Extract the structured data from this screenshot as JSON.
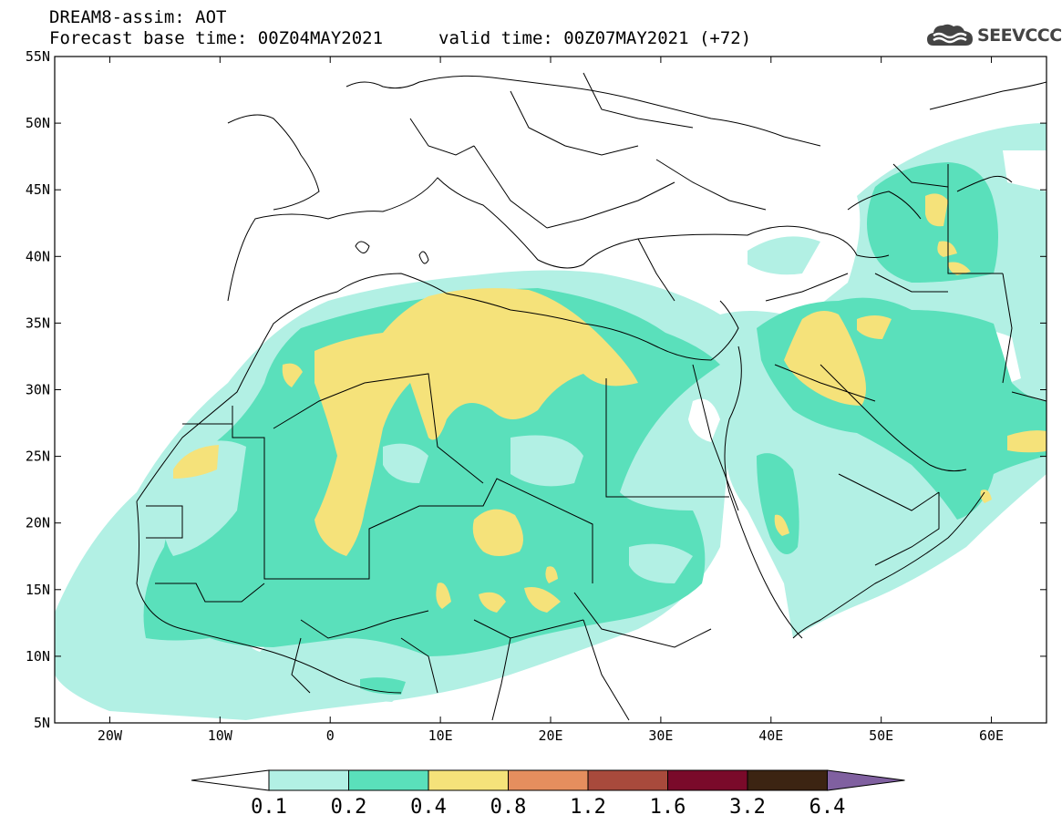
{
  "header": {
    "title": "DREAM8-assim: AOT",
    "base_time": "Forecast base time: 00Z04MAY2021",
    "valid_time": "valid time: 00Z07MAY2021 (+72)"
  },
  "logo": {
    "icon": "cloud-icon",
    "text": "SEEVCCC"
  },
  "map": {
    "lon_range": [
      -25,
      65
    ],
    "lat_range": [
      5,
      55
    ],
    "lon_ticks": [
      {
        "value": -20,
        "label": "20W"
      },
      {
        "value": -10,
        "label": "10W"
      },
      {
        "value": 0,
        "label": "0"
      },
      {
        "value": 10,
        "label": "10E"
      },
      {
        "value": 20,
        "label": "20E"
      },
      {
        "value": 30,
        "label": "30E"
      },
      {
        "value": 40,
        "label": "40E"
      },
      {
        "value": 50,
        "label": "50E"
      },
      {
        "value": 60,
        "label": "60E"
      }
    ],
    "lat_ticks": [
      {
        "value": 55,
        "label": "55N"
      },
      {
        "value": 50,
        "label": "50N"
      },
      {
        "value": 45,
        "label": "45N"
      },
      {
        "value": 40,
        "label": "40N"
      },
      {
        "value": 35,
        "label": "35N"
      },
      {
        "value": 30,
        "label": "30N"
      },
      {
        "value": 25,
        "label": "25N"
      },
      {
        "value": 20,
        "label": "20N"
      },
      {
        "value": 15,
        "label": "15N"
      },
      {
        "value": 10,
        "label": "10N"
      },
      {
        "value": 5,
        "label": "5N"
      }
    ]
  },
  "colorbar": {
    "labels": [
      "0.1",
      "0.2",
      "0.4",
      "0.8",
      "1.2",
      "1.6",
      "3.2",
      "6.4"
    ],
    "colors": [
      "#ffffff",
      "#b2f0e4",
      "#5ae0bb",
      "#f5e27a",
      "#e58e5e",
      "#a84a3c",
      "#7a0a2a",
      "#3c2412",
      "#8060a0"
    ]
  },
  "colors": {
    "level_01": "#b2f0e4",
    "level_02": "#5ae0bb",
    "level_04": "#f5e27a"
  }
}
